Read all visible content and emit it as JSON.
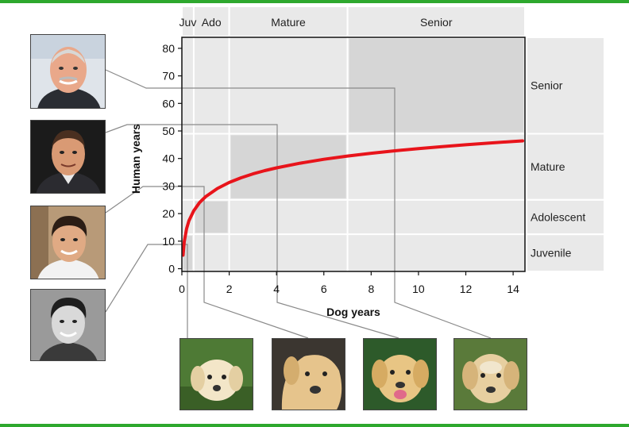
{
  "chart_data": {
    "type": "line",
    "xlabel": "Dog years",
    "ylabel": "Human years",
    "xlim": [
      0,
      14.5
    ],
    "ylim": [
      -1,
      84
    ],
    "xticks": [
      "0",
      "2",
      "4",
      "6",
      "8",
      "10",
      "12",
      "14"
    ],
    "yticks": [
      "0",
      "10",
      "20",
      "30",
      "40",
      "50",
      "60",
      "70",
      "80"
    ],
    "series": [
      {
        "color": "#e8141b",
        "x": [
          0.05,
          0.1,
          0.2,
          0.3,
          0.5,
          0.75,
          1,
          1.5,
          2,
          2.5,
          3,
          3.5,
          4,
          5,
          6,
          7,
          8,
          9,
          10,
          11,
          12,
          13,
          14,
          14.4
        ],
        "y": [
          4.9,
          9.8,
          14.6,
          17.4,
          21.0,
          24.0,
          26.1,
          29.1,
          31.3,
          33.0,
          34.4,
          35.6,
          36.6,
          38.3,
          39.7,
          40.9,
          41.9,
          42.8,
          43.6,
          44.3,
          45.0,
          45.6,
          46.2,
          46.4
        ]
      }
    ],
    "top_stages": [
      {
        "label": "Juv",
        "from": 0,
        "to": 0.5
      },
      {
        "label": "Ado",
        "from": 0.5,
        "to": 2
      },
      {
        "label": "Mature",
        "from": 2,
        "to": 7
      },
      {
        "label": "Senior",
        "from": 7,
        "to": 14.5
      }
    ],
    "right_stages": [
      {
        "label": "Senior",
        "from": 49,
        "to": 84
      },
      {
        "label": "Mature",
        "from": 25,
        "to": 49
      },
      {
        "label": "Adolescent",
        "from": 12.5,
        "to": 25
      },
      {
        "label": "Juvenile",
        "from": -1,
        "to": 12.5
      }
    ],
    "highlight_boxes": [
      {
        "x": [
          0,
          0.5
        ],
        "y": [
          -1,
          12.5
        ]
      },
      {
        "x": [
          0.5,
          2
        ],
        "y": [
          12.5,
          25
        ]
      },
      {
        "x": [
          2,
          7
        ],
        "y": [
          25,
          49
        ]
      },
      {
        "x": [
          7,
          14.5
        ],
        "y": [
          49,
          84
        ]
      }
    ],
    "grid": false
  },
  "icons": {
    "human_portraits": [
      "man-older-icon",
      "man-middle-aged-icon",
      "man-young-adult-icon",
      "boy-teen-icon"
    ],
    "dog_photos": [
      "puppy-labrador-icon",
      "young-labrador-icon",
      "adult-labrador-icon",
      "senior-labrador-icon"
    ]
  },
  "colors": {
    "curve": "#e8141b",
    "frame": "#2da82d",
    "band": "#e9e9e9",
    "box": "#d6d6d6"
  }
}
